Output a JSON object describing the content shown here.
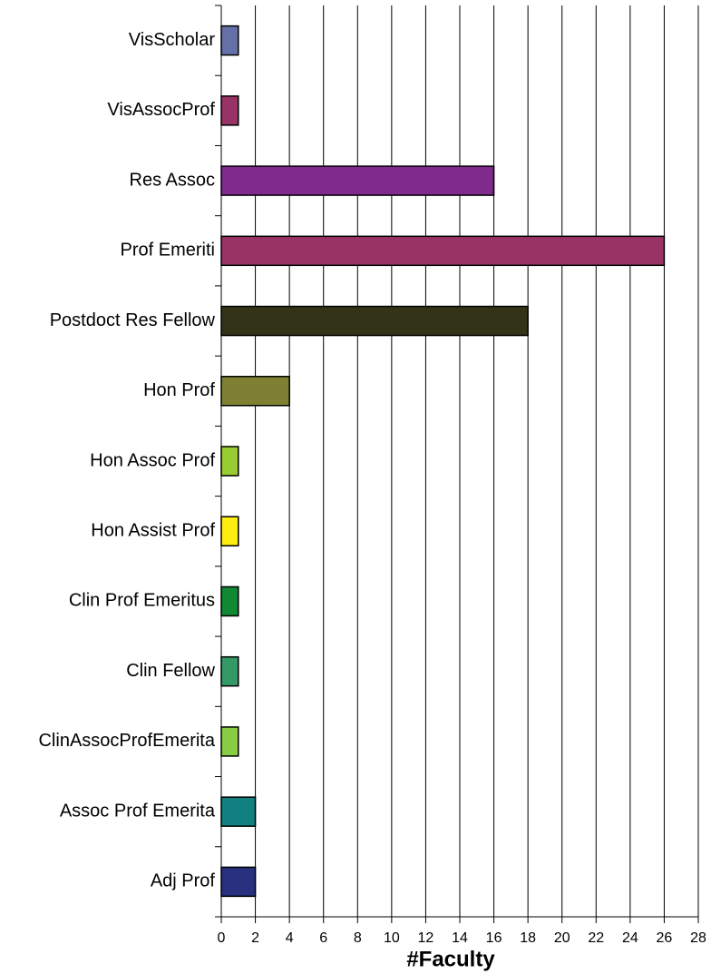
{
  "chart_data": {
    "type": "barh",
    "categories": [
      "VisScholar",
      "VisAssocProf",
      "Res Assoc",
      "Prof Emeriti",
      "Postdoct Res Fellow",
      "Hon Prof",
      "Hon Assoc Prof",
      "Hon Assist Prof",
      "Clin Prof Emeritus",
      "Clin Fellow",
      "ClinAssocProfEmerita",
      "Assoc Prof Emerita",
      "Adj Prof"
    ],
    "values": [
      1,
      1,
      16,
      26,
      18,
      4,
      1,
      1,
      1,
      1,
      1,
      2,
      2
    ],
    "colors": [
      "#6670a8",
      "#993366",
      "#7f2a8c",
      "#993366",
      "#333318",
      "#7f8033",
      "#99cc33",
      "#ffee11",
      "#118833",
      "#339966",
      "#88cc44",
      "#118080",
      "#283080"
    ],
    "xlabel": "#Faculty",
    "xlim": [
      0,
      28
    ],
    "xticks": [
      0,
      2,
      4,
      6,
      8,
      10,
      12,
      14,
      16,
      18,
      20,
      22,
      24,
      26,
      28
    ],
    "grid": true
  }
}
